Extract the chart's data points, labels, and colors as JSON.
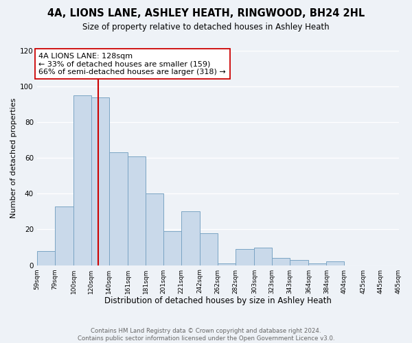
{
  "title": "4A, LIONS LANE, ASHLEY HEATH, RINGWOOD, BH24 2HL",
  "subtitle": "Size of property relative to detached houses in Ashley Heath",
  "xlabel": "Distribution of detached houses by size in Ashley Heath",
  "ylabel": "Number of detached properties",
  "bar_left_edges": [
    59,
    79,
    100,
    120,
    140,
    161,
    181,
    201,
    221,
    242,
    262,
    282,
    303,
    323,
    343,
    364,
    384,
    404,
    425,
    445
  ],
  "bar_heights": [
    8,
    33,
    95,
    94,
    63,
    61,
    40,
    19,
    30,
    18,
    1,
    9,
    10,
    4,
    3,
    1,
    2,
    0,
    0,
    0
  ],
  "bar_widths": [
    20,
    21,
    20,
    20,
    21,
    20,
    20,
    20,
    21,
    20,
    20,
    21,
    20,
    20,
    21,
    20,
    20,
    21,
    20,
    20
  ],
  "xlim": [
    59,
    465
  ],
  "ylim": [
    0,
    120
  ],
  "yticks": [
    0,
    20,
    40,
    60,
    80,
    100,
    120
  ],
  "xtick_labels": [
    "59sqm",
    "79sqm",
    "100sqm",
    "120sqm",
    "140sqm",
    "161sqm",
    "181sqm",
    "201sqm",
    "221sqm",
    "242sqm",
    "262sqm",
    "282sqm",
    "303sqm",
    "323sqm",
    "343sqm",
    "364sqm",
    "384sqm",
    "404sqm",
    "425sqm",
    "445sqm",
    "465sqm"
  ],
  "xtick_positions": [
    59,
    79,
    100,
    120,
    140,
    161,
    181,
    201,
    221,
    242,
    262,
    282,
    303,
    323,
    343,
    364,
    384,
    404,
    425,
    445,
    465
  ],
  "bar_color": "#c9d9ea",
  "bar_edge_color": "#7aa4c4",
  "vline_x": 128,
  "vline_color": "#cc0000",
  "annotation_line1": "4A LIONS LANE: 128sqm",
  "annotation_line2": "← 33% of detached houses are smaller (159)",
  "annotation_line3": "66% of semi-detached houses are larger (318) →",
  "annotation_box_color": "#ffffff",
  "annotation_box_edge": "#cc0000",
  "annotation_fontsize": 8.0,
  "footer_text": "Contains HM Land Registry data © Crown copyright and database right 2024.\nContains public sector information licensed under the Open Government Licence v3.0.",
  "title_fontsize": 10.5,
  "subtitle_fontsize": 8.5,
  "xlabel_fontsize": 8.5,
  "ylabel_fontsize": 8.0,
  "bg_color": "#eef2f7",
  "plot_bg_color": "#eef2f7",
  "grid_color": "#ffffff"
}
